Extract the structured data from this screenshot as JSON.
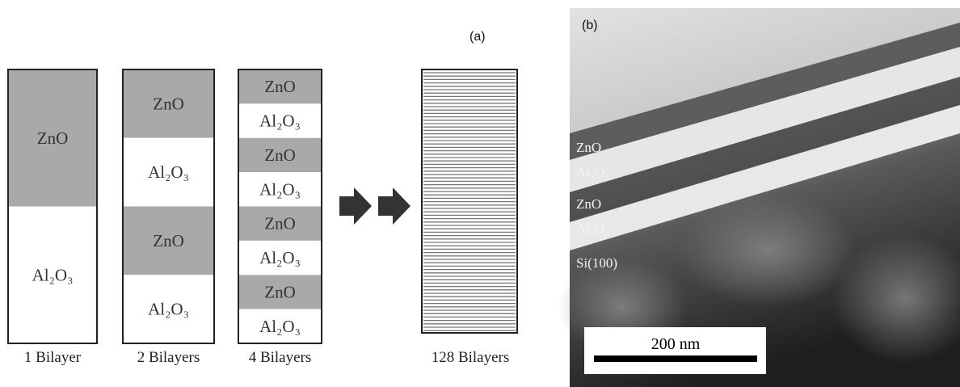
{
  "panel_a": {
    "label": "(a)",
    "stacks": [
      {
        "caption": "1 Bilayer",
        "layers": [
          "ZnO",
          "Al₂O₃"
        ]
      },
      {
        "caption": "2 Bilayers",
        "layers": [
          "ZnO",
          "Al₂O₃",
          "ZnO",
          "Al₂O₃"
        ]
      },
      {
        "caption": "4 Bilayers",
        "layers": [
          "ZnO",
          "Al₂O₃",
          "ZnO",
          "Al₂O₃",
          "ZnO",
          "Al₂O₃",
          "ZnO",
          "Al₂O₃"
        ]
      }
    ],
    "striped_stack": {
      "caption": "128 Bilayers"
    }
  },
  "panel_b": {
    "label": "(b)",
    "layer_labels": [
      "ZnO",
      "Al₂O₃",
      "ZnO",
      "Al₂O₃",
      "Si(100)"
    ],
    "scale_bar": "200 nm"
  }
}
